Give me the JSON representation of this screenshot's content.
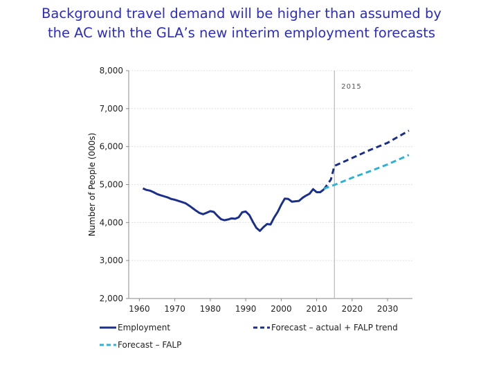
{
  "slide": {
    "title_line1": "Background travel demand will be higher than assumed by",
    "title_line2": "the AC with the GLA’s new interim employment forecasts"
  },
  "chart_data": {
    "type": "line",
    "title": "",
    "xlabel": "",
    "ylabel": "Number of People (000s)",
    "xlim": [
      1957,
      2037
    ],
    "ylim": [
      2000,
      8000
    ],
    "x_ticks": [
      "1960",
      "1970",
      "1980",
      "1990",
      "2000",
      "2010",
      "2020",
      "2030"
    ],
    "y_ticks": [
      "2,000",
      "3,000",
      "4,000",
      "5,000",
      "6,000",
      "7,000",
      "8,000"
    ],
    "grid": true,
    "legend_position": "bottom",
    "annotations": [
      {
        "text": "2015",
        "x": 2015
      }
    ],
    "colors": {
      "employment": "#1a2f8a",
      "forecast_actual_falp_trend": "#1a2f8a",
      "forecast_falp": "#2cb2d6",
      "title": "#2b2bc8"
    },
    "series": [
      {
        "name": "Employment",
        "style": "solid",
        "x": [
          1961,
          1962,
          1963,
          1964,
          1965,
          1966,
          1967,
          1968,
          1969,
          1970,
          1971,
          1972,
          1973,
          1974,
          1975,
          1976,
          1977,
          1978,
          1979,
          1980,
          1981,
          1982,
          1983,
          1984,
          1985,
          1986,
          1987,
          1988,
          1989,
          1990,
          1991,
          1992,
          1993,
          1994,
          1995,
          1996,
          1997,
          1998,
          1999,
          2000,
          2001,
          2002,
          2003,
          2004,
          2005,
          2006,
          2007,
          2008,
          2009,
          2010,
          2011,
          2012
        ],
        "values": [
          4900,
          4860,
          4840,
          4800,
          4750,
          4720,
          4690,
          4660,
          4620,
          4600,
          4570,
          4540,
          4510,
          4450,
          4380,
          4310,
          4250,
          4220,
          4260,
          4300,
          4280,
          4180,
          4090,
          4060,
          4080,
          4110,
          4100,
          4140,
          4270,
          4290,
          4200,
          4020,
          3860,
          3780,
          3880,
          3960,
          3950,
          4130,
          4280,
          4470,
          4630,
          4620,
          4550,
          4560,
          4570,
          4650,
          4710,
          4760,
          4880,
          4800,
          4800,
          4870
        ]
      },
      {
        "name": "Forecast – actual + FALP trend",
        "style": "dashed",
        "x": [
          2012,
          2014,
          2015,
          2020,
          2025,
          2030,
          2036
        ],
        "values": [
          4870,
          5130,
          5490,
          5700,
          5910,
          6100,
          6420
        ]
      },
      {
        "name": "Forecast – FALP",
        "style": "dashed",
        "x": [
          2012,
          2015,
          2020,
          2025,
          2030,
          2036
        ],
        "values": [
          4890,
          4990,
          5180,
          5350,
          5530,
          5780
        ]
      }
    ]
  }
}
